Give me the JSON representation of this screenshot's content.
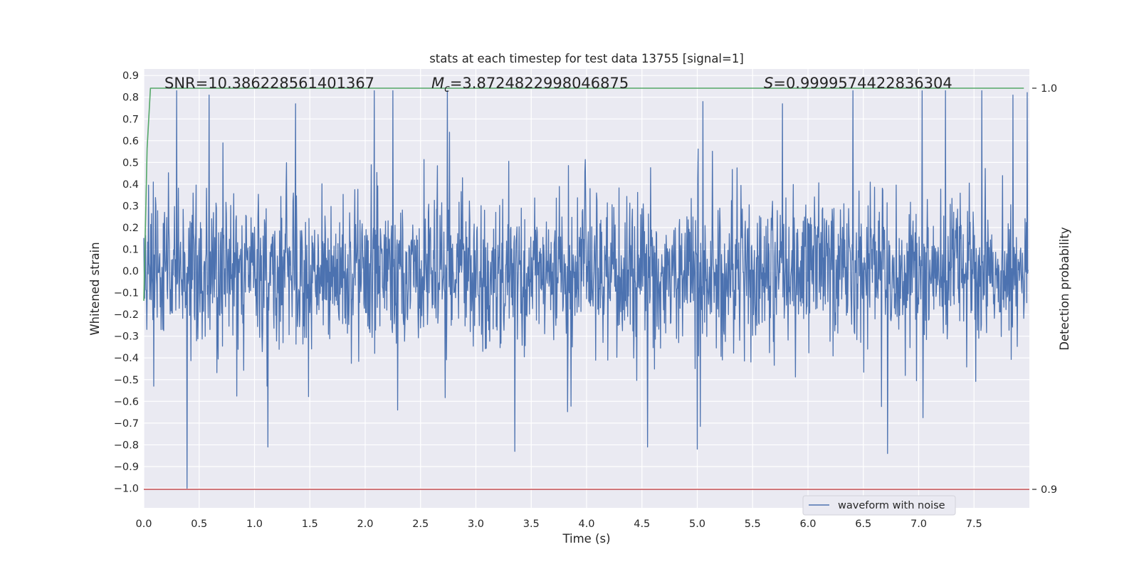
{
  "chart_data": {
    "type": "line",
    "title": "stats at each timestep for test data 13755 [signal=1]",
    "xlabel": "Time (s)",
    "ylabel": "Whitened strain",
    "y2label": "Detection probability",
    "xlim": [
      0.0,
      8.0
    ],
    "ylim": [
      -1.09,
      0.93
    ],
    "y2lim": [
      0.9,
      1.0
    ],
    "xticks": [
      "0.0",
      "0.5",
      "1.0",
      "1.5",
      "2.0",
      "2.5",
      "3.0",
      "3.5",
      "4.0",
      "4.5",
      "5.0",
      "5.5",
      "6.0",
      "6.5",
      "7.0",
      "7.5"
    ],
    "xtick_values": [
      0.0,
      0.5,
      1.0,
      1.5,
      2.0,
      2.5,
      3.0,
      3.5,
      4.0,
      4.5,
      5.0,
      5.5,
      6.0,
      6.5,
      7.0,
      7.5
    ],
    "yticks": [
      "0.9",
      "0.8",
      "0.7",
      "0.6",
      "0.5",
      "0.4",
      "0.3",
      "0.2",
      "0.1",
      "0.0",
      "−0.1",
      "−0.2",
      "−0.3",
      "−0.4",
      "−0.5",
      "−0.6",
      "−0.7",
      "−0.8",
      "−0.9",
      "−1.0"
    ],
    "ytick_values": [
      0.9,
      0.8,
      0.7,
      0.6,
      0.5,
      0.4,
      0.3,
      0.2,
      0.1,
      0.0,
      -0.1,
      -0.2,
      -0.3,
      -0.4,
      -0.5,
      -0.6,
      -0.7,
      -0.8,
      -0.9,
      -1.0
    ],
    "y2ticks": [
      "1.0",
      "0.9"
    ],
    "y2tick_values": [
      1.0,
      0.9
    ],
    "grid": true,
    "legend": {
      "position": "lower-right",
      "entries": [
        "waveform with noise"
      ]
    },
    "annotations": {
      "snr": "SNR=10.386228561401367",
      "mc_symbol": "M",
      "mc_sub": "c",
      "mc_value": "=3.8724822998046875",
      "s_symbol": "S",
      "s_value": "=0.9999574422836304"
    },
    "series": [
      {
        "name": "waveform with noise",
        "axis": "left",
        "color": "#4c72b0",
        "kind": "noise",
        "x_range": [
          0.0,
          7.99
        ],
        "sample_rate": 256,
        "core_std": 0.17,
        "y_min": -1.0,
        "y_max": 0.83,
        "notable_peaks": [
          {
            "x": 0.59,
            "y": 0.81
          },
          {
            "x": 2.25,
            "y": 0.83
          },
          {
            "x": 7.57,
            "y": 0.83
          },
          {
            "x": 1.37,
            "y": 0.77
          },
          {
            "x": 5.05,
            "y": 0.78
          },
          {
            "x": 7.85,
            "y": 0.81
          }
        ],
        "notable_troughs": [
          {
            "x": 0.39,
            "y": -1.0
          },
          {
            "x": 6.72,
            "y": -0.84
          },
          {
            "x": 3.35,
            "y": -0.83
          },
          {
            "x": 5.0,
            "y": -0.82
          },
          {
            "x": 1.12,
            "y": -0.81
          },
          {
            "x": 4.55,
            "y": -0.81
          }
        ]
      },
      {
        "name": "",
        "axis": "right",
        "color": "#55a868",
        "x": [
          0.0,
          0.03,
          0.06,
          7.95
        ],
        "y": [
          0.947,
          0.985,
          1.0,
          1.0
        ]
      },
      {
        "name": "",
        "axis": "right",
        "color": "#c44e52",
        "x": [
          0.0,
          8.0
        ],
        "y": [
          0.9,
          0.9
        ]
      }
    ],
    "colors": {
      "background": "#eaeaf2",
      "grid": "#ffffff"
    }
  }
}
